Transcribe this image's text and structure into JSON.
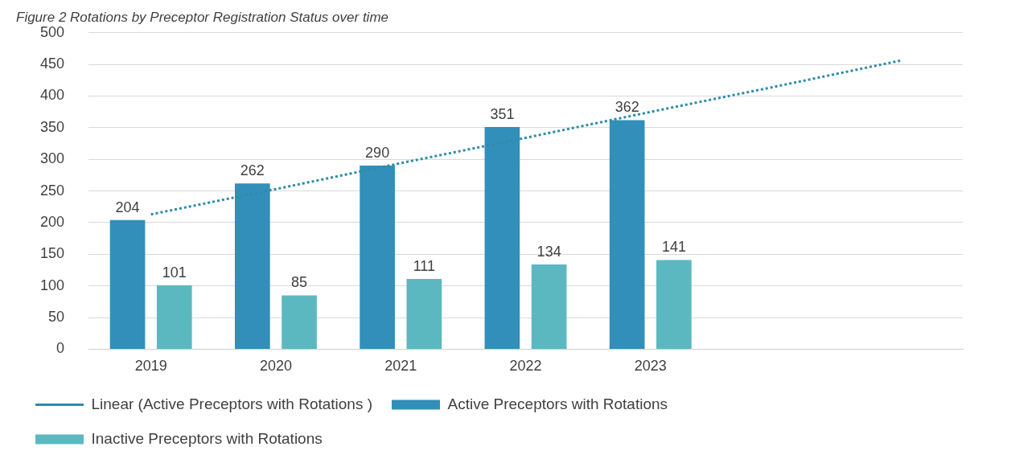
{
  "chart_data": {
    "type": "bar",
    "title": "Figure 2 Rotations by Preceptor Registration Status over time",
    "categories": [
      "2019",
      "2020",
      "2021",
      "2022",
      "2023",
      null,
      null
    ],
    "series": [
      {
        "name": "Active Preceptors with Rotations",
        "color": "#318fba",
        "values": [
          204,
          262,
          290,
          351,
          362,
          null,
          null
        ],
        "value_labels": [
          "204",
          "262",
          "290",
          "351",
          "362",
          null,
          null
        ]
      },
      {
        "name": "Inactive Preceptors with Rotations",
        "color": "#5bb8c1",
        "values": [
          101,
          85,
          111,
          134,
          141,
          null,
          null
        ],
        "value_labels": [
          "101",
          "85",
          "111",
          "134",
          "141",
          null,
          null
        ]
      },
      {
        "name": "Linear (Active Preceptors with Rotations )",
        "type": "line",
        "color": "#2e8ba8",
        "line_style": "dotted",
        "marker": "none",
        "values": [
          213,
          253,
          294,
          334,
          375,
          415,
          456
        ]
      }
    ],
    "ylim": [
      0,
      500
    ],
    "yticks": [
      0,
      50,
      100,
      150,
      200,
      250,
      300,
      350,
      400,
      450,
      500
    ],
    "grid": "y",
    "legend": "bottom"
  }
}
